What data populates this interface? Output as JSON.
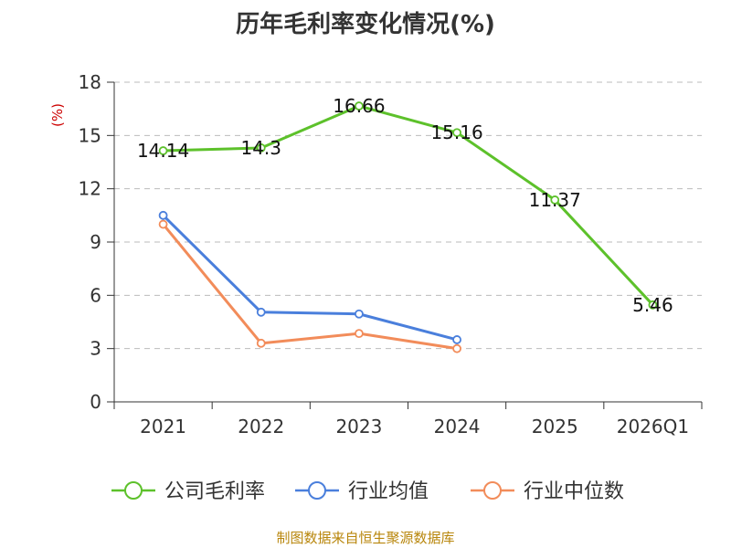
{
  "colors": {
    "axis": "#333333",
    "grid": "#bbbbbb",
    "footer": "#b8860b",
    "unit": "#cc0000"
  },
  "chart_data": {
    "type": "line",
    "title": "历年毛利率变化情况(%)",
    "ylabel": "(%)",
    "xlabel": "",
    "categories": [
      "2021",
      "2022",
      "2023",
      "2024",
      "2025",
      "2026Q1"
    ],
    "ylim": [
      0,
      18
    ],
    "yticks": [
      0,
      3,
      6,
      9,
      12,
      15,
      18
    ],
    "grid": true,
    "legend_position": "bottom",
    "series": [
      {
        "name": "公司毛利率",
        "color": "#5dc12b",
        "values": [
          14.14,
          14.3,
          16.66,
          15.16,
          11.37,
          5.46
        ],
        "labels": [
          "14.14",
          "14.3",
          "16.66",
          "15.16",
          "11.37",
          "5.46"
        ]
      },
      {
        "name": "行业均值",
        "color": "#4a7fdc",
        "values": [
          10.5,
          5.05,
          4.95,
          3.5,
          null,
          null
        ]
      },
      {
        "name": "行业中位数",
        "color": "#f28c5a",
        "values": [
          10.0,
          3.3,
          3.85,
          3.0,
          null,
          null
        ]
      }
    ]
  },
  "footer": "制图数据来自恒生聚源数据库"
}
